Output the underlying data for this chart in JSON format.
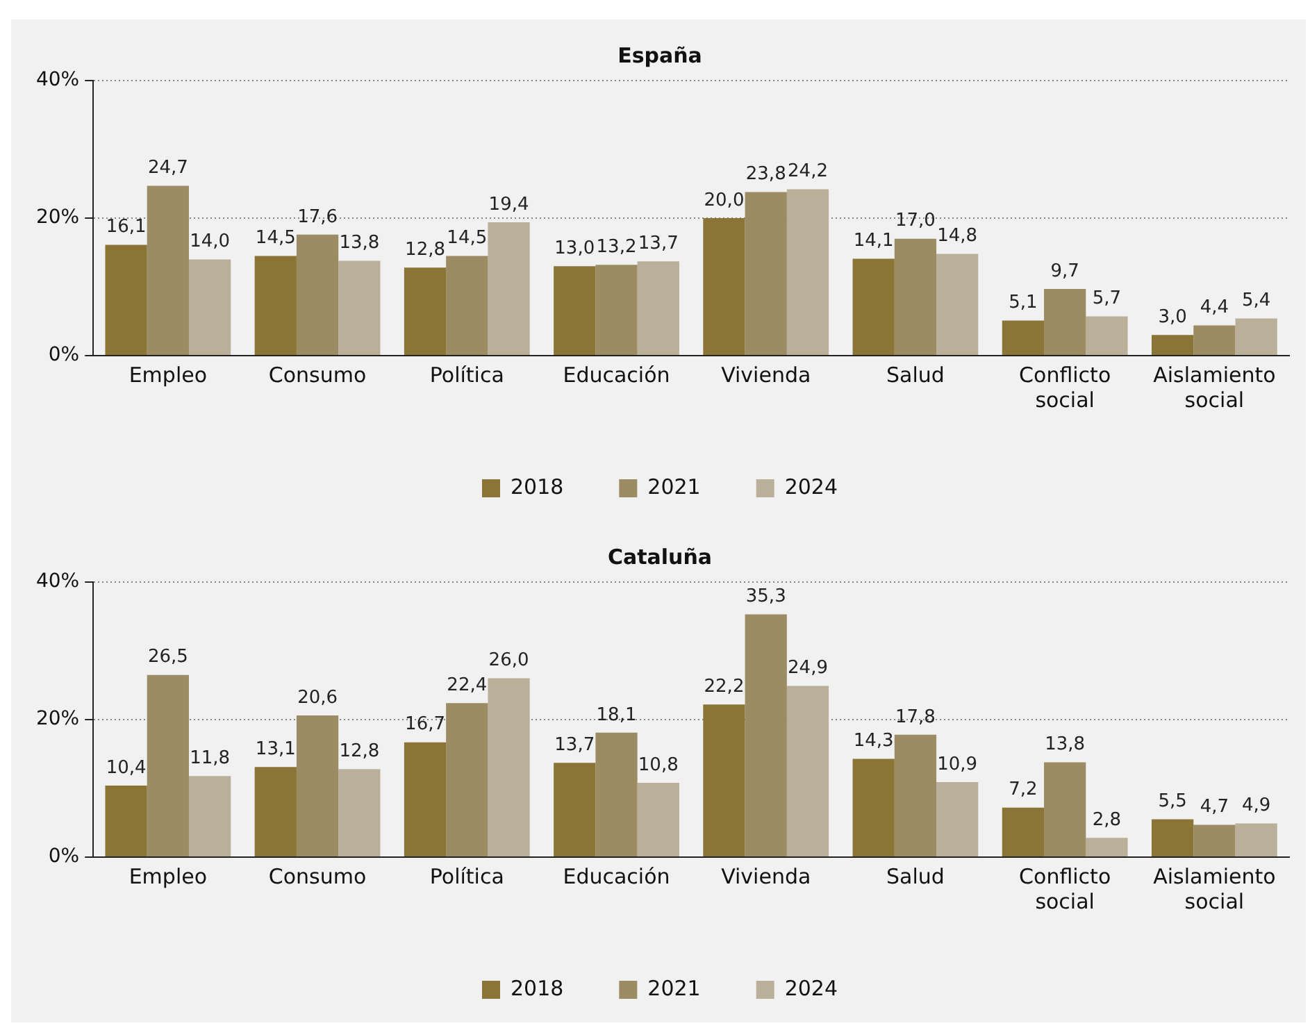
{
  "chart_data": [
    {
      "type": "bar",
      "title": "España",
      "categories": [
        "Empleo",
        "Consumo",
        "Política",
        "Educación",
        "Vivienda",
        "Salud",
        "Conflicto social",
        "Aislamiento social"
      ],
      "ylim": [
        0,
        40
      ],
      "yticks": [
        {
          "value": 0,
          "label": "0%"
        },
        {
          "value": 20,
          "label": "20%"
        },
        {
          "value": 40,
          "label": "40%"
        }
      ],
      "grid": "y",
      "legend": "bottom",
      "series": [
        {
          "name": "2018",
          "color": "#8a7536",
          "values": [
            16.1,
            14.5,
            12.8,
            13.0,
            20.0,
            14.1,
            5.1,
            3.0
          ],
          "value_labels": [
            "16,1",
            "14,5",
            "12,8",
            "13,0",
            "20,0",
            "14,1",
            "5,1",
            "3,0"
          ]
        },
        {
          "name": "2021",
          "color": "#9c8c64",
          "values": [
            24.7,
            17.6,
            14.5,
            13.2,
            23.8,
            17.0,
            9.7,
            4.4
          ],
          "value_labels": [
            "24,7",
            "17,6",
            "14,5",
            "13,2",
            "23,8",
            "17,0",
            "9,7",
            "4,4"
          ]
        },
        {
          "name": "2024",
          "color": "#bab09a",
          "values": [
            14.0,
            13.8,
            19.4,
            13.7,
            24.2,
            14.8,
            5.7,
            5.4
          ],
          "value_labels": [
            "14,0",
            "13,8",
            "19,4",
            "13,7",
            "24,2",
            "14,8",
            "5,7",
            "5,4"
          ]
        }
      ]
    },
    {
      "type": "bar",
      "title": "Cataluña",
      "categories": [
        "Empleo",
        "Consumo",
        "Política",
        "Educación",
        "Vivienda",
        "Salud",
        "Conflicto social",
        "Aislamiento social"
      ],
      "ylim": [
        0,
        40
      ],
      "yticks": [
        {
          "value": 0,
          "label": "0%"
        },
        {
          "value": 20,
          "label": "20%"
        },
        {
          "value": 40,
          "label": "40%"
        }
      ],
      "grid": "y",
      "legend": "bottom",
      "series": [
        {
          "name": "2018",
          "color": "#8a7536",
          "values": [
            10.4,
            13.1,
            16.7,
            13.7,
            22.2,
            14.3,
            7.2,
            5.5
          ],
          "value_labels": [
            "10,4",
            "13,1",
            "16,7",
            "13,7",
            "22,2",
            "14,3",
            "7,2",
            "5,5"
          ]
        },
        {
          "name": "2021",
          "color": "#9c8c64",
          "values": [
            26.5,
            20.6,
            22.4,
            18.1,
            35.3,
            17.8,
            13.8,
            4.7
          ],
          "value_labels": [
            "26,5",
            "20,6",
            "22,4",
            "18,1",
            "35,3",
            "17,8",
            "13,8",
            "4,7"
          ]
        },
        {
          "name": "2024",
          "color": "#bab09a",
          "values": [
            11.8,
            12.8,
            26.0,
            10.8,
            24.9,
            10.9,
            2.8,
            4.9
          ],
          "value_labels": [
            "11,8",
            "12,8",
            "26,0",
            "10,8",
            "24,9",
            "10,9",
            "2,8",
            "4,9"
          ]
        }
      ]
    }
  ]
}
